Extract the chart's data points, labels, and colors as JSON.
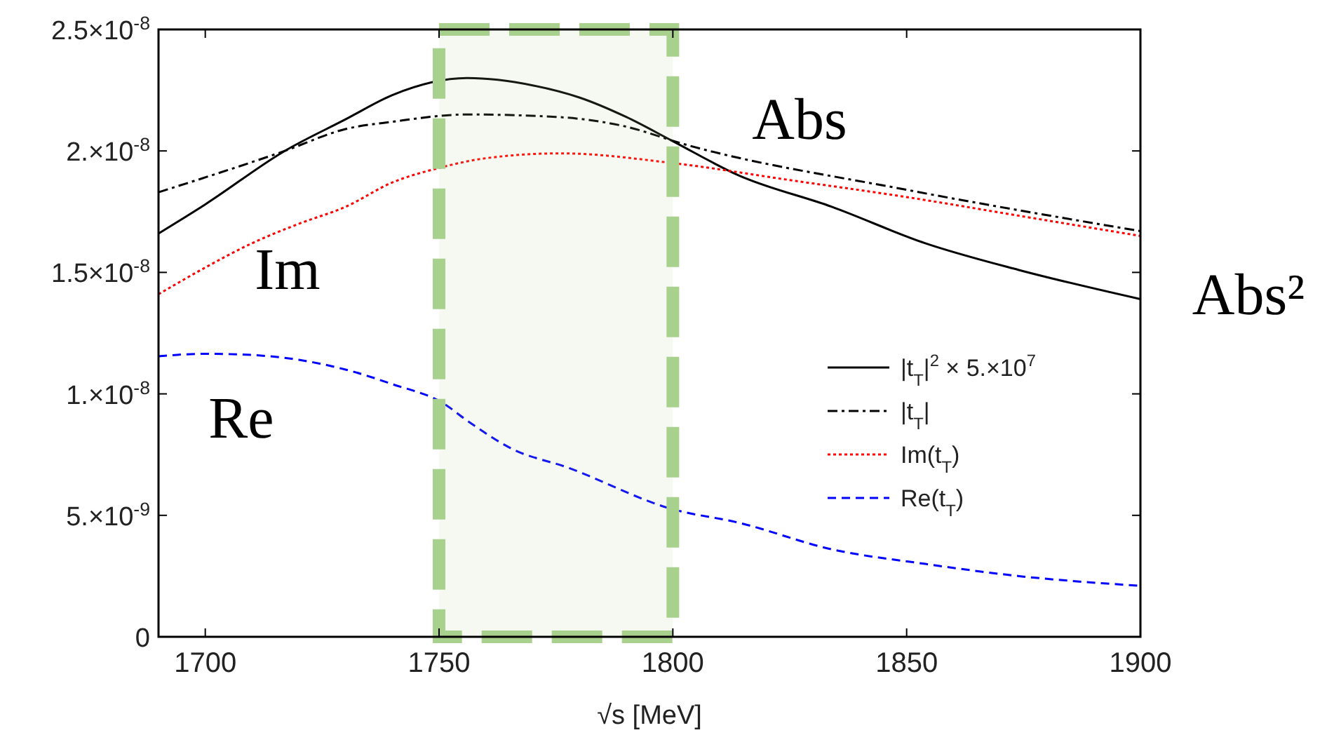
{
  "chart_data": {
    "type": "line",
    "xlabel": "√s [MeV]",
    "xlim": [
      1690,
      1900
    ],
    "xticks": [
      1700,
      1750,
      1800,
      1850,
      1900
    ],
    "ylim": [
      0,
      2.5e-08
    ],
    "yticks": [
      {
        "value": 0,
        "label": "0"
      },
      {
        "value": 5e-09,
        "label": "5.×10$^{-9}$"
      },
      {
        "value": 1e-08,
        "label": "1.×10$^{-8}$"
      },
      {
        "value": 1.5e-08,
        "label": "1.5×10$^{-8}$"
      },
      {
        "value": 2e-08,
        "label": "2.×10$^{-8}$"
      },
      {
        "value": 2.5e-08,
        "label": "2.5×10$^{-8}$"
      }
    ],
    "grid": false,
    "legend": "right",
    "marker": "none",
    "series": [
      {
        "name": "|t$_{T}$|$^{2}$ × 5.×10$^{7}$",
        "color": "#000000",
        "line_style": "solid",
        "x": [
          1690,
          1700,
          1717,
          1730,
          1740,
          1756,
          1770,
          1780,
          1790,
          1800,
          1814,
          1834,
          1854,
          1874,
          1900
        ],
        "values": [
          1.66e-08,
          1.78e-08,
          2e-08,
          2.13e-08,
          2.23e-08,
          2.3e-08,
          2.27e-08,
          2.22e-08,
          2.14e-08,
          2.04e-08,
          1.9e-08,
          1.77e-08,
          1.62e-08,
          1.51e-08,
          1.39e-08
        ]
      },
      {
        "name": "|t$_{T}$|",
        "color": "#000000",
        "line_style": "dashdot",
        "x": [
          1690,
          1717,
          1730,
          1740,
          1756,
          1775,
          1790,
          1802,
          1850,
          1900
        ],
        "values": [
          1.83e-08,
          2e-08,
          2.09e-08,
          2.12e-08,
          2.15e-08,
          2.14e-08,
          2.1e-08,
          2.03e-08,
          1.84e-08,
          1.67e-08
        ]
      },
      {
        "name": "Im(t$_{T}$)",
        "color": "#ff0000",
        "line_style": "dotted",
        "x": [
          1690,
          1700,
          1710,
          1720,
          1730,
          1740,
          1750,
          1760,
          1776,
          1800,
          1825,
          1850,
          1875,
          1900
        ],
        "values": [
          1.41e-08,
          1.52e-08,
          1.62e-08,
          1.7e-08,
          1.77e-08,
          1.87e-08,
          1.93e-08,
          1.97e-08,
          1.99e-08,
          1.95e-08,
          1.88e-08,
          1.81e-08,
          1.73e-08,
          1.65e-08
        ]
      },
      {
        "name": "Re(t$_{T}$)",
        "color": "#0000ff",
        "line_style": "dashed",
        "x": [
          1690,
          1700,
          1710,
          1720,
          1730,
          1740,
          1751,
          1756,
          1766,
          1777,
          1800,
          1814,
          1834,
          1854,
          1874,
          1900
        ],
        "values": [
          1.155e-08,
          1.165e-08,
          1.16e-08,
          1.14e-08,
          1.1e-08,
          1.04e-08,
          9.6e-09,
          8.9e-09,
          7.7e-09,
          7e-09,
          5.25e-09,
          4.7e-09,
          3.6e-09,
          3e-09,
          2.5e-09,
          2.1e-09
        ]
      }
    ],
    "bands": [
      {
        "axis": "x",
        "from": 1750,
        "to": 1800,
        "color": "#a9d18e"
      }
    ],
    "annotations": [
      "Abs",
      "Im",
      "Re",
      "Abs²"
    ]
  }
}
